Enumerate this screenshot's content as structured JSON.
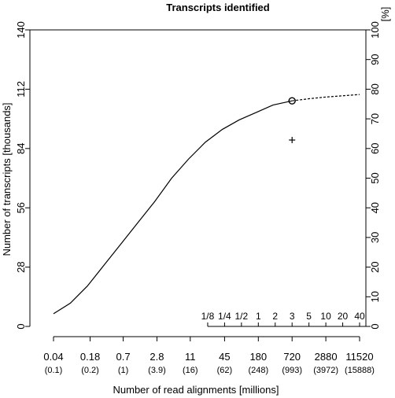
{
  "chart_data": {
    "type": "line",
    "title": "Transcripts identified",
    "xlabel": "Number of read alignments [millions]",
    "ylabel_left": "Number of transcripts [thousands]",
    "ylabel_right": "[%]",
    "x_scale": "log",
    "xlim": [
      0.04,
      11520
    ],
    "ylim": [
      0,
      140
    ],
    "y_ticks_left": [
      0,
      28,
      56,
      84,
      112,
      140
    ],
    "y_ticks_right": [
      0,
      10,
      20,
      30,
      40,
      50,
      60,
      70,
      80,
      90,
      100
    ],
    "x_ticks": [
      {
        "value": 0.04,
        "label": "0.04",
        "sublabel": "(0.1)"
      },
      {
        "value": 0.18,
        "label": "0.18",
        "sublabel": "(0.2)"
      },
      {
        "value": 0.7,
        "label": "0.7",
        "sublabel": "(1)"
      },
      {
        "value": 2.8,
        "label": "2.8",
        "sublabel": "(3.9)"
      },
      {
        "value": 11,
        "label": "11",
        "sublabel": "(16)"
      },
      {
        "value": 45,
        "label": "45",
        "sublabel": "(62)"
      },
      {
        "value": 180,
        "label": "180",
        "sublabel": "(248)"
      },
      {
        "value": 720,
        "label": "720",
        "sublabel": "(993)"
      },
      {
        "value": 2880,
        "label": "2880",
        "sublabel": "(3972)"
      },
      {
        "value": 11520,
        "label": "11520",
        "sublabel": "(15888)"
      }
    ],
    "fraction_ticks": [
      {
        "value": 22.5,
        "label": "1/8"
      },
      {
        "value": 45,
        "label": "1/4"
      },
      {
        "value": 90,
        "label": "1/2"
      },
      {
        "value": 180,
        "label": "1"
      },
      {
        "value": 360,
        "label": "2"
      },
      {
        "value": 720,
        "label": "3"
      },
      {
        "value": 1440,
        "label": "5"
      },
      {
        "value": 2880,
        "label": "10"
      },
      {
        "value": 5760,
        "label": "20"
      },
      {
        "value": 11520,
        "label": "40"
      }
    ],
    "series": [
      {
        "style": "solid",
        "x": [
          0.04,
          0.08,
          0.16,
          0.32,
          0.64,
          1.28,
          2.56,
          5.12,
          10.24,
          20.48,
          40.96,
          81.92,
          163.84,
          327.68,
          720
        ],
        "y": [
          6,
          11,
          19,
          29,
          39,
          49,
          59,
          70,
          79,
          87,
          93,
          97.5,
          101,
          104.5,
          106.5
        ]
      },
      {
        "style": "dashed",
        "x": [
          720,
          1440,
          2880,
          5760,
          11520
        ],
        "y": [
          106.5,
          107.5,
          108.3,
          108.9,
          109.5
        ]
      }
    ],
    "markers": [
      {
        "shape": "circle",
        "x": 720,
        "y": 106.5
      },
      {
        "shape": "plus",
        "x": 720,
        "y": 88
      }
    ]
  }
}
